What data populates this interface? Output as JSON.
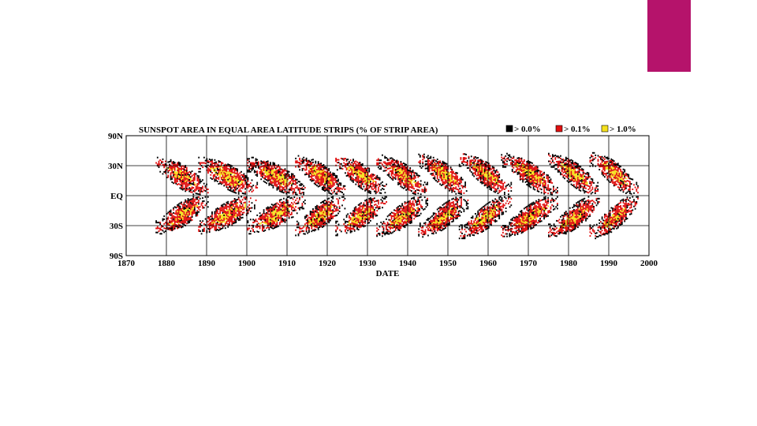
{
  "slide": {
    "accent_color": "#b5136b"
  },
  "chart_data": {
    "type": "heatmap",
    "title": "SUNSPOT AREA IN EQUAL AREA LATITUDE STRIPS (% OF STRIP AREA)",
    "xlabel": "DATE",
    "ylabel": "",
    "xlim": [
      1870,
      2000
    ],
    "x_ticks": [
      1870,
      1880,
      1890,
      1900,
      1910,
      1920,
      1930,
      1940,
      1950,
      1960,
      1970,
      1980,
      1990,
      2000
    ],
    "x_tick_labels": [
      "1870",
      "1880",
      "1890",
      "1900",
      "1910",
      "1920",
      "1930",
      "1940",
      "1950",
      "1960",
      "1970",
      "1980",
      "1990",
      "2000"
    ],
    "ylim": [
      -90,
      90
    ],
    "y_axis_scale": "sine of latitude (equal area)",
    "y_ticks": [
      90,
      30,
      0,
      -30,
      -90
    ],
    "y_tick_labels": [
      "90N",
      "30N",
      "EQ",
      "30S",
      "90S"
    ],
    "grid": true,
    "legend_position": "top-right",
    "legend": [
      {
        "label": "> 0.0%",
        "color": "#000000"
      },
      {
        "label": "> 0.1%",
        "color": "#e01010"
      },
      {
        "label": "> 1.0%",
        "color": "#f5e11e"
      }
    ],
    "cycles": [
      {
        "min_year": 1878.9,
        "end_year": 1889.5,
        "start_latitude": 30,
        "end_latitude": 6
      },
      {
        "min_year": 1889.5,
        "end_year": 1901.7,
        "start_latitude": 30,
        "end_latitude": 6
      },
      {
        "min_year": 1901.7,
        "end_year": 1913.6,
        "start_latitude": 30,
        "end_latitude": 6
      },
      {
        "min_year": 1913.6,
        "end_year": 1923.6,
        "start_latitude": 32,
        "end_latitude": 6
      },
      {
        "min_year": 1923.6,
        "end_year": 1933.8,
        "start_latitude": 32,
        "end_latitude": 6
      },
      {
        "min_year": 1933.8,
        "end_year": 1944.2,
        "start_latitude": 33,
        "end_latitude": 6
      },
      {
        "min_year": 1944.2,
        "end_year": 1954.3,
        "start_latitude": 34,
        "end_latitude": 6
      },
      {
        "min_year": 1954.3,
        "end_year": 1964.8,
        "start_latitude": 36,
        "end_latitude": 6
      },
      {
        "min_year": 1964.8,
        "end_year": 1976.5,
        "start_latitude": 35,
        "end_latitude": 6
      },
      {
        "min_year": 1976.5,
        "end_year": 1986.8,
        "start_latitude": 35,
        "end_latitude": 6
      },
      {
        "min_year": 1986.8,
        "end_year": 1996.5,
        "start_latitude": 36,
        "end_latitude": 6
      }
    ]
  }
}
